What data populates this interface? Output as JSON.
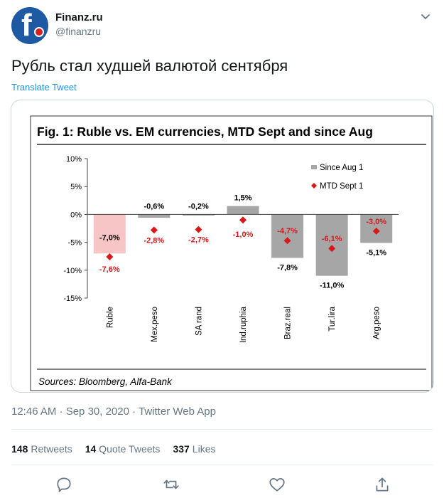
{
  "header": {
    "display_name": "Finanz.ru",
    "handle": "@finanzru",
    "avatar_letter": "f"
  },
  "tweet": {
    "text": "Рубль стал худшей валютой сентября",
    "translate_label": "Translate Tweet"
  },
  "meta": {
    "timestamp": "12:46 AM · Sep 30, 2020 · Twitter Web App"
  },
  "stats": {
    "retweets_count": "148",
    "retweets_label": "Retweets",
    "quotes_count": "14",
    "quotes_label": "Quote Tweets",
    "likes_count": "337",
    "likes_label": "Likes"
  },
  "chart_data": {
    "type": "bar",
    "title": "Fig. 1: Ruble vs. EM currencies, MTD Sept and since Aug",
    "source": "Sources: Bloomberg, Alfa-Bank",
    "categories": [
      "Ruble",
      "Mex.peso",
      "SA rand",
      "Ind.ruphia",
      "Braz.real",
      "Tur.lira",
      "Arg.peso"
    ],
    "series": [
      {
        "name": "Since Aug 1",
        "values": [
          -7.0,
          -0.6,
          -0.2,
          1.5,
          -7.8,
          -11.0,
          -5.1
        ],
        "labels": [
          "-7,0%",
          "-0,6%",
          "-0,2%",
          "1,5%",
          "-7,8%",
          "-11,0%",
          "-5,1%"
        ],
        "color": "#a6a6a6",
        "highlight_color": "#f7c5c5"
      },
      {
        "name": "MTD Sept 1",
        "values": [
          -7.6,
          -2.8,
          -2.7,
          -1.0,
          -4.7,
          -6.1,
          -3.0
        ],
        "labels": [
          "-7,6%",
          "-2,8%",
          "-2,7%",
          "-1,0%",
          "-4,7%",
          "-6,1%",
          "-3,0%"
        ],
        "color": "#d7191c"
      }
    ],
    "ylim": [
      -15,
      10
    ],
    "yticks": [
      10,
      5,
      0,
      -5,
      -10,
      -15
    ],
    "ytick_labels": [
      "10%",
      "5%",
      "0%",
      "-5%",
      "-10%",
      "-15%"
    ],
    "legend": "top-right"
  }
}
